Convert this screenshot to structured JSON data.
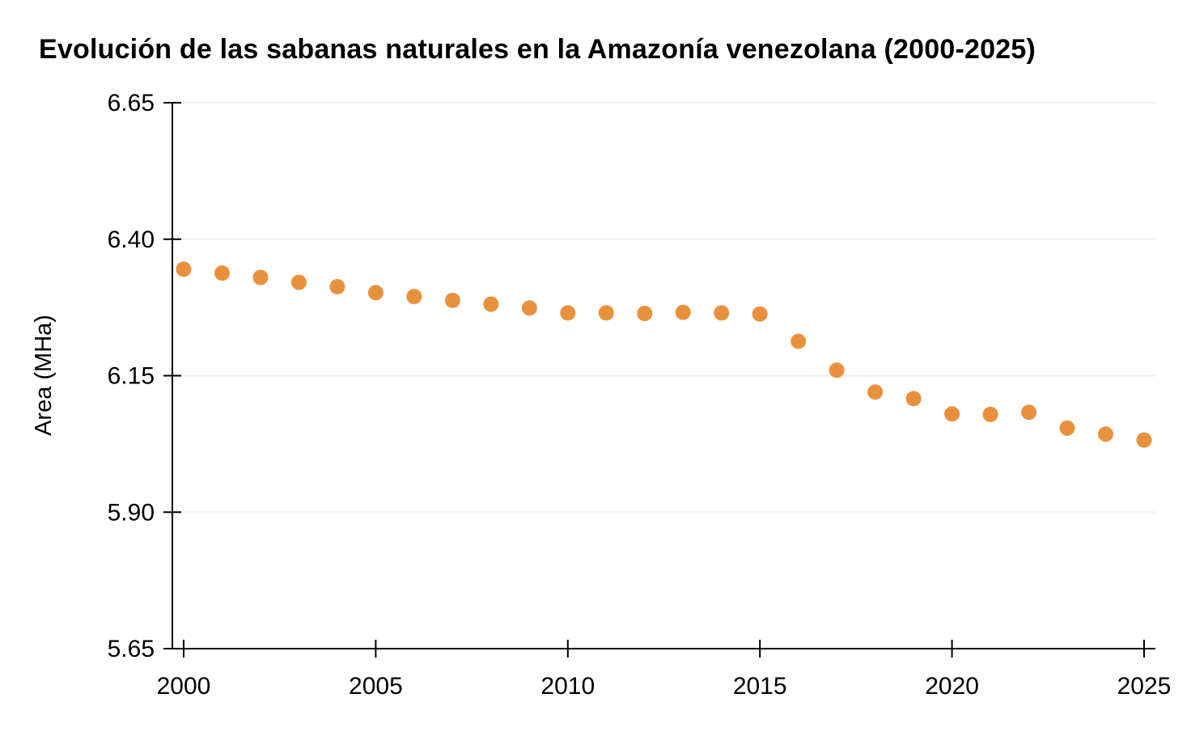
{
  "page": {
    "background": "#ffffff"
  },
  "chart_data": {
    "type": "scatter",
    "title": "Evolución de las sabanas naturales en la Amazonía venezolana (2000-2025)",
    "xlabel": "",
    "ylabel": "Area (MHa)",
    "x": [
      2000,
      2001,
      2002,
      2003,
      2004,
      2005,
      2006,
      2007,
      2008,
      2009,
      2010,
      2011,
      2012,
      2013,
      2014,
      2015,
      2016,
      2017,
      2018,
      2019,
      2020,
      2021,
      2022,
      2023,
      2024,
      2025
    ],
    "values": [
      6.345,
      6.338,
      6.33,
      6.321,
      6.313,
      6.302,
      6.295,
      6.288,
      6.281,
      6.274,
      6.265,
      6.265,
      6.264,
      6.266,
      6.265,
      6.263,
      6.213,
      6.16,
      6.12,
      6.108,
      6.08,
      6.079,
      6.083,
      6.054,
      6.043,
      6.032
    ],
    "xlim": [
      2000,
      2025
    ],
    "ylim": [
      5.65,
      6.65
    ],
    "xticks": [
      2000,
      2005,
      2010,
      2015,
      2020,
      2025
    ],
    "yticks": [
      5.65,
      5.9,
      6.15,
      6.4,
      6.65
    ],
    "ytick_labels": [
      "5.65",
      "5.90",
      "6.15",
      "6.40",
      "6.65"
    ],
    "xtick_labels": [
      "2000",
      "2005",
      "2010",
      "2015",
      "2020",
      "2025"
    ],
    "grid": true,
    "legend": "none",
    "point_color": "#E8913D",
    "grid_color": "#F2F2F2",
    "axis_color": "#000000",
    "text_color": "#000000"
  }
}
